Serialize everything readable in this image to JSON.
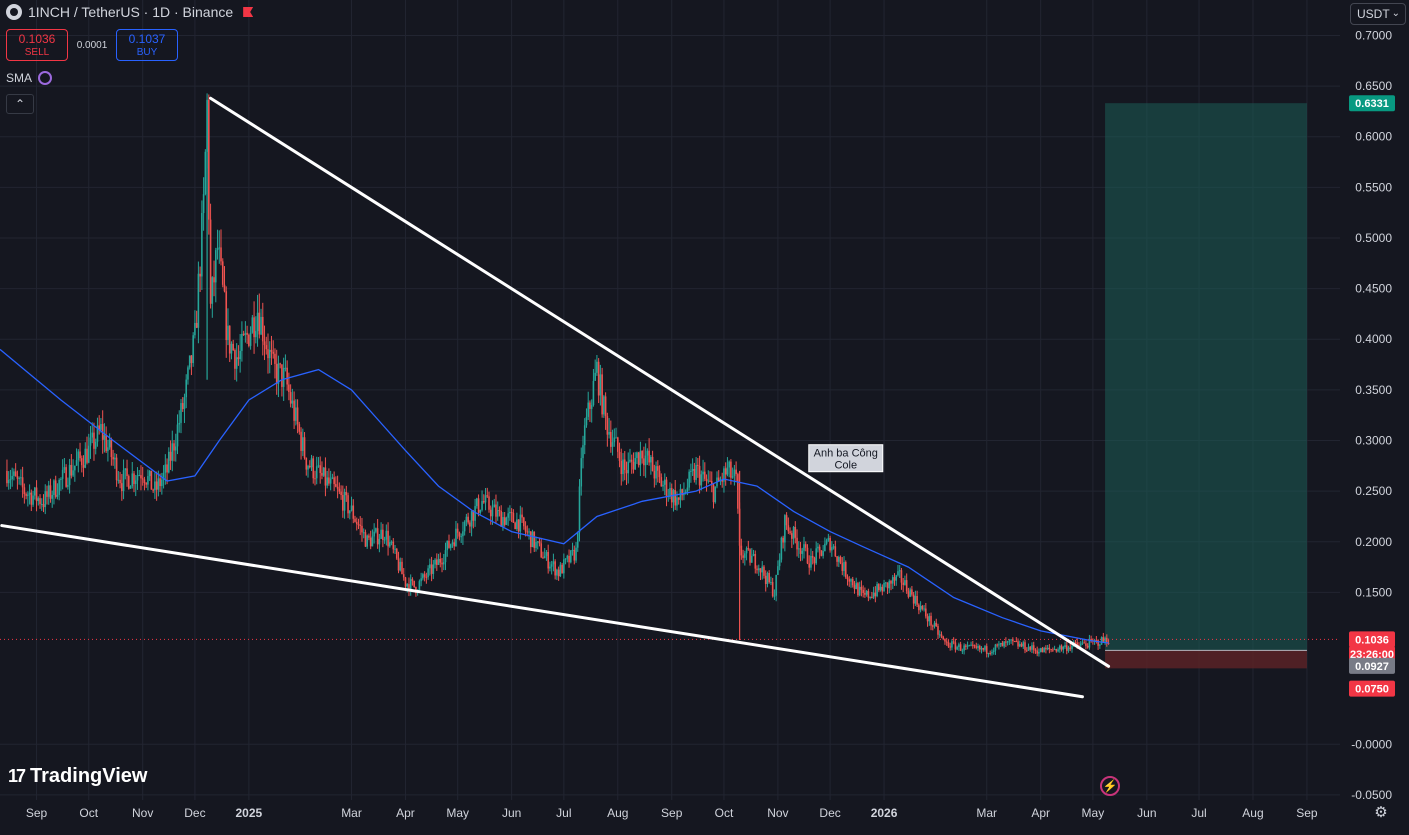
{
  "header": {
    "symbol_title": "1INCH / TetherUS · 1D · Binance",
    "sell_price": "0.1036",
    "sell_label": "SELL",
    "spread": "0.0001",
    "buy_price": "0.1037",
    "buy_label": "BUY",
    "indicator": "SMA",
    "collapse_icon": "chevron-up-icon",
    "currency": "USDT",
    "currency_chevron": "⌄"
  },
  "branding": {
    "logo_mark": "17",
    "logo_text": "TradingView"
  },
  "icons": {
    "settings": "gear-icon",
    "lightning": "lightning-icon",
    "flag": "flag-icon"
  },
  "colors": {
    "background": "#151720",
    "candle_up": "#26a69a",
    "candle_down": "#ef5350",
    "sma_line": "#2962ff",
    "trendline": "#ffffff",
    "target_zone": "#1c5c56",
    "stop_zone": "#5e2327",
    "axis_text": "#d1d4dc",
    "price_label_red": "#f23645",
    "price_label_teal": "#089981"
  },
  "chart_data": {
    "type": "candlestick",
    "title": "1INCH / TetherUS · 1D · Binance",
    "x_axis": {
      "type": "date",
      "tick_labels": [
        "Sep",
        "Oct",
        "Nov",
        "Dec",
        "2025",
        "Mar",
        "Apr",
        "May",
        "Jun",
        "Jul",
        "Aug",
        "Sep",
        "Oct",
        "Nov",
        "Dec",
        "2026",
        "Mar",
        "Apr",
        "May",
        "Jun",
        "Jul",
        "Aug",
        "Sep"
      ],
      "tick_dates": [
        "2024-09-01",
        "2024-10-01",
        "2024-11-01",
        "2024-12-01",
        "2025-01-01",
        "2025-03-01",
        "2025-04-01",
        "2025-05-01",
        "2025-06-01",
        "2025-07-01",
        "2025-08-01",
        "2025-09-01",
        "2025-10-01",
        "2025-11-01",
        "2025-12-01",
        "2026-01-01",
        "2026-03-01",
        "2026-04-01",
        "2026-05-01",
        "2026-06-01",
        "2026-07-01",
        "2026-08-01",
        "2026-09-01"
      ],
      "range": [
        "2024-08-11",
        "2026-09-20"
      ]
    },
    "y_axis": {
      "ticks": [
        -0.05,
        0.0,
        0.15,
        0.2,
        0.25,
        0.3,
        0.35,
        0.4,
        0.45,
        0.5,
        0.55,
        0.6,
        0.65,
        0.7
      ],
      "tick_labels": [
        "-0.0500",
        "-0.0000",
        "0.1500",
        "0.2000",
        "0.2500",
        "0.3000",
        "0.3500",
        "0.4000",
        "0.4500",
        "0.5000",
        "0.5500",
        "0.6000",
        "0.6500",
        "0.7000"
      ],
      "range": [
        -0.055,
        0.735
      ]
    },
    "grid": true,
    "price_series_anchors": [
      [
        "2024-08-15",
        0.27
      ],
      [
        "2024-08-25",
        0.25
      ],
      [
        "2024-09-05",
        0.24
      ],
      [
        "2024-09-20",
        0.27
      ],
      [
        "2024-10-01",
        0.29
      ],
      [
        "2024-10-08",
        0.31
      ],
      [
        "2024-10-20",
        0.26
      ],
      [
        "2024-11-01",
        0.27
      ],
      [
        "2024-11-08",
        0.25
      ],
      [
        "2024-11-15",
        0.27
      ],
      [
        "2024-11-25",
        0.34
      ],
      [
        "2024-12-01",
        0.4
      ],
      [
        "2024-12-06",
        0.53
      ],
      [
        "2024-12-08",
        0.63
      ],
      [
        "2024-12-10",
        0.43
      ],
      [
        "2024-12-14",
        0.49
      ],
      [
        "2024-12-20",
        0.4
      ],
      [
        "2024-12-26",
        0.38
      ],
      [
        "2025-01-06",
        0.43
      ],
      [
        "2025-01-15",
        0.37
      ],
      [
        "2025-01-22",
        0.36
      ],
      [
        "2025-01-28",
        0.32
      ],
      [
        "2025-02-03",
        0.28
      ],
      [
        "2025-02-08",
        0.27
      ],
      [
        "2025-02-20",
        0.25
      ],
      [
        "2025-03-01",
        0.23
      ],
      [
        "2025-03-10",
        0.2
      ],
      [
        "2025-03-20",
        0.21
      ],
      [
        "2025-04-01",
        0.16
      ],
      [
        "2025-04-07",
        0.155
      ],
      [
        "2025-04-20",
        0.18
      ],
      [
        "2025-05-01",
        0.21
      ],
      [
        "2025-05-15",
        0.24
      ],
      [
        "2025-05-25",
        0.225
      ],
      [
        "2025-06-05",
        0.22
      ],
      [
        "2025-06-20",
        0.185
      ],
      [
        "2025-06-28",
        0.17
      ],
      [
        "2025-07-08",
        0.19
      ],
      [
        "2025-07-12",
        0.3
      ],
      [
        "2025-07-20",
        0.37
      ],
      [
        "2025-07-25",
        0.32
      ],
      [
        "2025-08-05",
        0.27
      ],
      [
        "2025-08-15",
        0.29
      ],
      [
        "2025-08-25",
        0.26
      ],
      [
        "2025-09-05",
        0.24
      ],
      [
        "2025-09-15",
        0.27
      ],
      [
        "2025-09-25",
        0.25
      ],
      [
        "2025-10-03",
        0.27
      ],
      [
        "2025-10-08",
        0.26
      ],
      [
        "2025-10-10",
        0.19
      ],
      [
        "2025-10-20",
        0.18
      ],
      [
        "2025-10-30",
        0.15
      ],
      [
        "2025-11-05",
        0.22
      ],
      [
        "2025-11-12",
        0.2
      ],
      [
        "2025-11-20",
        0.18
      ],
      [
        "2025-12-01",
        0.2
      ],
      [
        "2025-12-10",
        0.17
      ],
      [
        "2025-12-20",
        0.145
      ],
      [
        "2026-01-01",
        0.155
      ],
      [
        "2026-01-10",
        0.165
      ],
      [
        "2026-01-20",
        0.14
      ],
      [
        "2026-01-28",
        0.12
      ],
      [
        "2026-02-05",
        0.1
      ],
      [
        "2026-02-15",
        0.095
      ],
      [
        "2026-03-01",
        0.093
      ],
      [
        "2026-03-15",
        0.1
      ],
      [
        "2026-04-01",
        0.092
      ],
      [
        "2026-04-15",
        0.096
      ],
      [
        "2026-05-01",
        0.1
      ],
      [
        "2026-05-10",
        0.1036
      ]
    ],
    "sma_anchors": [
      [
        "2024-08-11",
        0.39
      ],
      [
        "2024-09-15",
        0.34
      ],
      [
        "2024-10-15",
        0.3
      ],
      [
        "2024-11-15",
        0.26
      ],
      [
        "2024-12-01",
        0.265
      ],
      [
        "2024-12-15",
        0.3
      ],
      [
        "2025-01-01",
        0.34
      ],
      [
        "2025-01-20",
        0.36
      ],
      [
        "2025-02-10",
        0.37
      ],
      [
        "2025-03-01",
        0.35
      ],
      [
        "2025-04-01",
        0.29
      ],
      [
        "2025-04-20",
        0.255
      ],
      [
        "2025-05-10",
        0.23
      ],
      [
        "2025-06-01",
        0.21
      ],
      [
        "2025-07-01",
        0.198
      ],
      [
        "2025-07-20",
        0.225
      ],
      [
        "2025-08-15",
        0.24
      ],
      [
        "2025-09-15",
        0.25
      ],
      [
        "2025-10-01",
        0.262
      ],
      [
        "2025-10-20",
        0.255
      ],
      [
        "2025-11-10",
        0.23
      ],
      [
        "2025-12-01",
        0.21
      ],
      [
        "2025-12-20",
        0.195
      ],
      [
        "2026-01-15",
        0.175
      ],
      [
        "2026-02-10",
        0.145
      ],
      [
        "2026-03-10",
        0.125
      ],
      [
        "2026-04-01",
        0.112
      ],
      [
        "2026-05-01",
        0.102
      ],
      [
        "2026-05-10",
        0.1
      ]
    ],
    "trendlines": [
      {
        "start": [
          "2024-12-10",
          0.638
        ],
        "end": [
          "2026-05-10",
          0.077
        ]
      },
      {
        "start": [
          "2024-08-12",
          0.216
        ],
        "end": [
          "2026-04-25",
          0.047
        ]
      }
    ],
    "position_tool": {
      "start_date": "2026-05-08",
      "end_date": "2026-09-01",
      "target": 0.6331,
      "entry": 0.0927,
      "stop": 0.075
    },
    "annotations": [
      {
        "text": "Anh ba Công\nCole",
        "date": "2025-12-10",
        "price": 0.283
      }
    ],
    "price_labels": [
      {
        "value": "0.6331",
        "color": "#089981",
        "at": 0.6331
      },
      {
        "value": "0.1036",
        "color": "#f23645",
        "at": 0.1036
      },
      {
        "value": "23:26:00",
        "color": "#f23645",
        "at": 0.089
      },
      {
        "value": "0.0927",
        "color": "#787b86",
        "at": 0.0775
      },
      {
        "value": "0.0750",
        "color": "#f23645",
        "at": 0.055
      }
    ],
    "last_price": 0.1036
  }
}
